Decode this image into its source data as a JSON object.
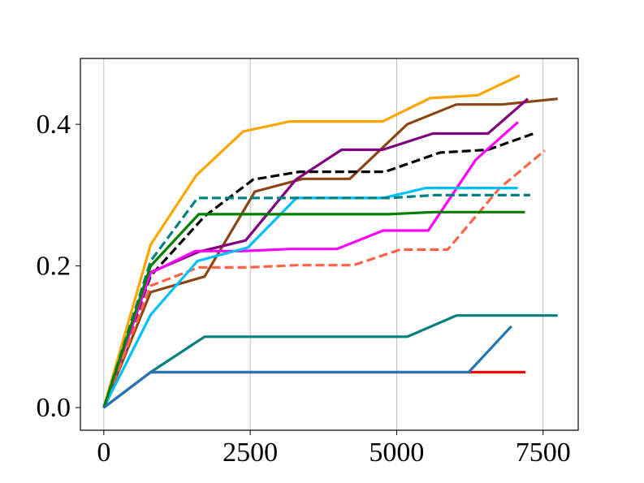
{
  "chart_data": {
    "type": "line",
    "title": "",
    "xlabel": "",
    "ylabel": "",
    "xlim": [
      -400,
      8100
    ],
    "ylim": [
      -0.032,
      0.493
    ],
    "x_ticks": [
      0,
      2500,
      5000,
      7500
    ],
    "x_tick_labels": [
      "0",
      "2500",
      "5000",
      "7500"
    ],
    "y_ticks": [
      0.0,
      0.2,
      0.4
    ],
    "y_tick_labels": [
      "0.0",
      "0.2",
      "0.4"
    ],
    "grid": "x-only",
    "legend": "none",
    "series": [
      {
        "color": "#ffa500",
        "style": "solid",
        "x": [
          0,
          800,
          1580,
          2380,
          3180,
          4000,
          4760,
          5570,
          6380,
          7100
        ],
        "y": [
          0.0,
          0.23,
          0.328,
          0.39,
          0.404,
          0.404,
          0.404,
          0.437,
          0.441,
          0.469
        ]
      },
      {
        "color": "#8b4513",
        "style": "solid",
        "x": [
          0,
          800,
          1720,
          2580,
          3400,
          4200,
          5180,
          6020,
          6800,
          7750
        ],
        "y": [
          0.0,
          0.163,
          0.185,
          0.305,
          0.323,
          0.323,
          0.4,
          0.428,
          0.428,
          0.436
        ]
      },
      {
        "color": "#800080",
        "style": "solid",
        "x": [
          0,
          800,
          1620,
          2420,
          3280,
          4060,
          4760,
          5620,
          6560,
          7240
        ],
        "y": [
          0.0,
          0.191,
          0.22,
          0.236,
          0.322,
          0.364,
          0.364,
          0.387,
          0.387,
          0.436
        ]
      },
      {
        "color": "#000000",
        "style": "dashed",
        "x": [
          0,
          800,
          1720,
          2550,
          3340,
          4150,
          4800,
          5740,
          6560,
          7340
        ],
        "y": [
          0.0,
          0.186,
          0.27,
          0.322,
          0.333,
          0.333,
          0.333,
          0.36,
          0.364,
          0.387
        ]
      },
      {
        "color": "#ff00ff",
        "style": "solid",
        "x": [
          0,
          800,
          1560,
          2370,
          3180,
          3980,
          4770,
          5540,
          6350,
          7070
        ],
        "y": [
          0.0,
          0.19,
          0.221,
          0.221,
          0.224,
          0.224,
          0.25,
          0.25,
          0.35,
          0.403
        ]
      },
      {
        "color": "#ff6347",
        "style": "dashed",
        "x": [
          0,
          800,
          1620,
          2460,
          3280,
          4260,
          5060,
          5870,
          6760,
          7530
        ],
        "y": [
          0.0,
          0.172,
          0.198,
          0.198,
          0.201,
          0.201,
          0.223,
          0.223,
          0.31,
          0.363
        ]
      },
      {
        "color": "#00bfff",
        "style": "solid",
        "x": [
          0,
          800,
          1600,
          2460,
          3290,
          4140,
          4770,
          5500,
          6320,
          7070
        ],
        "y": [
          0.0,
          0.131,
          0.207,
          0.226,
          0.296,
          0.296,
          0.296,
          0.31,
          0.31,
          0.31
        ]
      },
      {
        "color": "#008080",
        "style": "dashed",
        "x": [
          0,
          800,
          1600,
          2390,
          3230,
          4070,
          4860,
          5650,
          6490,
          7280
        ],
        "y": [
          0.0,
          0.207,
          0.296,
          0.296,
          0.296,
          0.296,
          0.296,
          0.3,
          0.3,
          0.3
        ]
      },
      {
        "color": "#008000",
        "style": "solid",
        "x": [
          0,
          800,
          1620,
          2420,
          3230,
          4020,
          4860,
          5620,
          6440,
          7190
        ],
        "y": [
          0.0,
          0.2,
          0.273,
          0.273,
          0.273,
          0.273,
          0.273,
          0.276,
          0.276,
          0.276
        ]
      },
      {
        "color": "#008080",
        "style": "solid",
        "x": [
          0,
          800,
          1720,
          2580,
          3340,
          4120,
          5180,
          6020,
          6820,
          7750
        ],
        "y": [
          0.0,
          0.05,
          0.1,
          0.1,
          0.1,
          0.1,
          0.1,
          0.13,
          0.13,
          0.13
        ]
      },
      {
        "color": "#ff0000",
        "style": "solid",
        "x": [
          0,
          800,
          1600,
          2400,
          3200,
          4000,
          4800,
          5600,
          6400,
          7200
        ],
        "y": [
          0.0,
          0.05,
          0.05,
          0.05,
          0.05,
          0.05,
          0.05,
          0.05,
          0.05,
          0.05
        ]
      },
      {
        "color": "#1f77b4",
        "style": "solid",
        "x": [
          0,
          800,
          1600,
          2400,
          3200,
          4000,
          4800,
          5600,
          6230,
          6960
        ],
        "y": [
          0.0,
          0.05,
          0.05,
          0.05,
          0.05,
          0.05,
          0.05,
          0.05,
          0.05,
          0.115
        ]
      }
    ]
  }
}
